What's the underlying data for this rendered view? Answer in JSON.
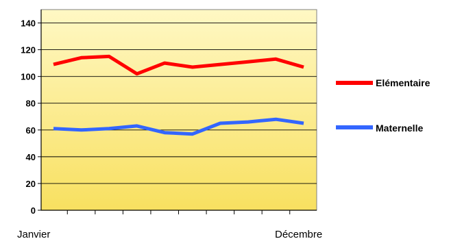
{
  "chart_data": {
    "type": "line",
    "x": [
      "1",
      "2",
      "3",
      "4",
      "5",
      "6",
      "7",
      "8",
      "9",
      "10"
    ],
    "x_tick_labels": {
      "first": "Janvier",
      "last": "Décembre"
    },
    "ylim": [
      0,
      150
    ],
    "yticks": [
      0,
      20,
      40,
      60,
      80,
      100,
      120,
      140
    ],
    "grid": true,
    "legend": "right",
    "background_gradient": [
      "#fff8c4",
      "#f8e060"
    ],
    "series": [
      {
        "name": "Elémentaire",
        "color": "#ff0000",
        "values": [
          109,
          114,
          115,
          102,
          110,
          107,
          109,
          111,
          113,
          107
        ]
      },
      {
        "name": "Maternelle",
        "color": "#3366ff",
        "values": [
          61,
          60,
          61,
          63,
          58,
          57,
          65,
          66,
          68,
          65
        ]
      }
    ]
  }
}
